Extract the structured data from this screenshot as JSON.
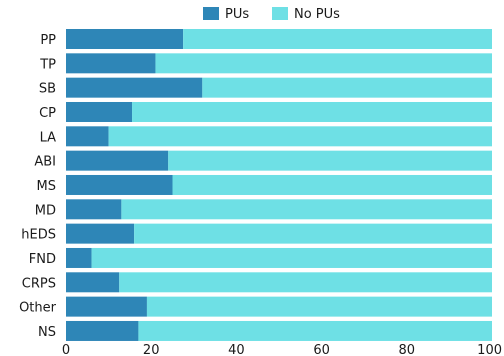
{
  "chart_data": {
    "type": "bar",
    "orientation": "horizontal",
    "stacked": true,
    "categories": [
      "PP",
      "TP",
      "SB",
      "CP",
      "LA",
      "ABI",
      "MS",
      "MD",
      "hEDS",
      "FND",
      "CRPS",
      "Other",
      "NS"
    ],
    "series": [
      {
        "name": "PUs",
        "values": [
          27.5,
          21,
          32,
          15.5,
          10,
          24,
          25,
          13,
          16,
          6,
          12.5,
          19,
          17
        ]
      },
      {
        "name": "No PUs",
        "values": [
          72.5,
          79,
          68,
          84.5,
          90,
          76,
          75,
          87,
          84,
          94,
          87.5,
          81,
          83
        ]
      }
    ],
    "colors": {
      "PUs": "#2e86b7",
      "No PUs": "#6ee0e5"
    },
    "xlim": [
      0,
      100
    ],
    "xticks": [
      "0",
      "20",
      "40",
      "60",
      "80",
      "100"
    ],
    "grid": false,
    "legend_position": "top"
  }
}
